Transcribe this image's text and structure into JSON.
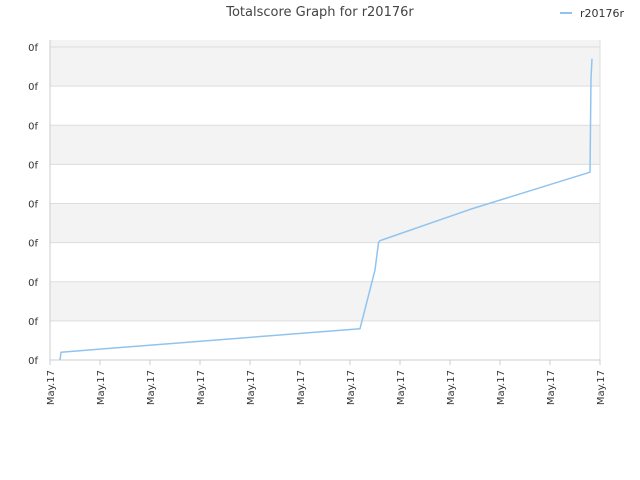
{
  "chart_data": {
    "type": "line",
    "title": "Totalscore Graph for r20176r",
    "legend": {
      "position": "top-right",
      "entries": [
        "r20176r"
      ]
    },
    "colors": {
      "series": "#90c4ee",
      "band": "#f3f3f3",
      "grid": "#dddddd",
      "axis": "#cccccc"
    },
    "y_tick_labels": [
      "0f",
      "0f",
      "0f",
      "0f",
      "0f",
      "0f",
      "0f",
      "0f",
      "0f"
    ],
    "x_tick_labels": [
      "May.17",
      "May.17",
      "May.17",
      "May.17",
      "May.17",
      "May.17",
      "May.17",
      "May.17",
      "May.17",
      "May.17",
      "May.17",
      "May.17"
    ],
    "ylim": [
      0,
      8
    ],
    "xlim": [
      0,
      11
    ],
    "grid": true,
    "series": [
      {
        "name": "r20176r",
        "points": [
          [
            0.2,
            0.0
          ],
          [
            0.22,
            0.2
          ],
          [
            6.2,
            0.8
          ],
          [
            6.5,
            2.3
          ],
          [
            6.57,
            3.0
          ],
          [
            6.6,
            3.05
          ],
          [
            8.4,
            3.85
          ],
          [
            10.8,
            4.8
          ],
          [
            10.82,
            7.2
          ],
          [
            10.84,
            7.7
          ]
        ]
      }
    ]
  }
}
